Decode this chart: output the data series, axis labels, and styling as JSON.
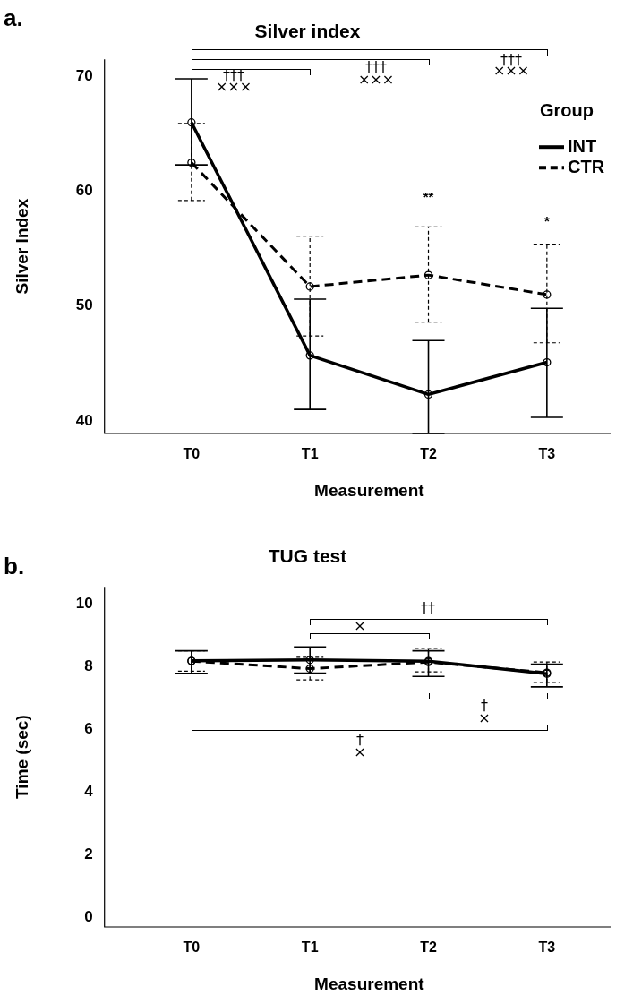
{
  "chart_data": [
    {
      "type": "line",
      "title": "Silver index",
      "xlabel": "Measurement",
      "ylabel": "Silver Index",
      "legend_title": "Group",
      "legend": "top right",
      "marker": "circle",
      "categories": [
        "T0",
        "T1",
        "T2",
        "T3"
      ],
      "ylim": [
        38.9,
        71.5
      ],
      "yticks": [
        40,
        50,
        60,
        70
      ],
      "series": [
        {
          "name": "INT",
          "color": "#000000",
          "line_style": "solid",
          "values": [
            66.0,
            45.7,
            42.3,
            45.1
          ],
          "errors": [
            [
              62.3,
              69.8
            ],
            [
              41.0,
              50.6
            ],
            [
              38.9,
              47.0
            ],
            [
              40.3,
              49.8
            ]
          ]
        },
        {
          "name": "CTR",
          "color": "#000000",
          "line_style": "dashed",
          "values": [
            62.5,
            51.7,
            52.7,
            51.0
          ],
          "errors": [
            [
              59.2,
              65.9
            ],
            [
              47.4,
              56.1
            ],
            [
              48.6,
              56.9
            ],
            [
              46.8,
              55.4
            ]
          ]
        }
      ],
      "annotations": [
        "a.",
        "†††\n×××",
        "†††\n×××",
        "†††\n×××",
        "**",
        "*"
      ]
    },
    {
      "type": "line",
      "title": "TUG test",
      "xlabel": "Measurement",
      "ylabel": "Time (sec)",
      "legend": false,
      "marker": "circle",
      "categories": [
        "T0",
        "T1",
        "T2",
        "T3"
      ],
      "ylim": [
        -0.3,
        10.55
      ],
      "yticks": [
        0,
        2,
        4,
        6,
        8,
        10
      ],
      "series": [
        {
          "color": "#000000",
          "line_style": "solid",
          "values": [
            8.19,
            8.22,
            8.18,
            7.78
          ],
          "errors": [
            [
              7.79,
              8.51
            ],
            [
              7.8,
              8.63
            ],
            [
              7.69,
              8.51
            ],
            [
              7.36,
              8.08
            ]
          ]
        },
        {
          "color": "#000000",
          "line_style": "dashed",
          "values": [
            8.18,
            7.94,
            8.15,
            7.81
          ],
          "errors": [
            [
              7.86,
              8.51
            ],
            [
              7.58,
              8.3
            ],
            [
              7.84,
              8.59
            ],
            [
              7.5,
              8.15
            ]
          ]
        }
      ],
      "annotations": [
        "b.",
        "††",
        "×",
        "†\n×",
        "†\n×"
      ]
    }
  ]
}
